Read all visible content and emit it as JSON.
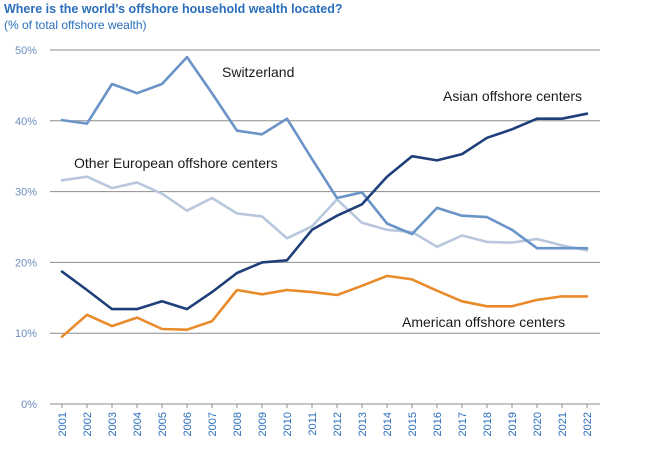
{
  "chart_data": {
    "type": "line",
    "title": "Where is the world’s offshore household wealth located?",
    "subtitle": "(% of total offshore wealth)",
    "x": [
      "2001",
      "2002",
      "2003",
      "2004",
      "2005",
      "2006",
      "2007",
      "2008",
      "2009",
      "2010",
      "2011",
      "2012",
      "2013",
      "2014",
      "2015",
      "2016",
      "2017",
      "2018",
      "2019",
      "2020",
      "2021",
      "2022"
    ],
    "yticks": [
      "0%",
      "10%",
      "20%",
      "30%",
      "40%",
      "50%"
    ],
    "ylim": [
      0,
      50
    ],
    "grid": true,
    "series": [
      {
        "name": "Switzerland",
        "color": "#6a93c8",
        "values": [
          40.1,
          39.6,
          45.2,
          43.9,
          45.2,
          49.0,
          43.9,
          38.6,
          38.1,
          40.3,
          34.6,
          29.1,
          29.9,
          25.5,
          24.0,
          27.7,
          26.6,
          26.4,
          24.6,
          22.0,
          22.0,
          22.0
        ]
      },
      {
        "name": "Asian offshore centers",
        "color": "#1f3f7a",
        "values": [
          18.7,
          16.1,
          13.4,
          13.4,
          14.5,
          13.4,
          15.8,
          18.5,
          20.0,
          20.3,
          24.6,
          26.6,
          28.2,
          32.1,
          35.0,
          34.4,
          35.3,
          37.6,
          38.8,
          40.3,
          40.3,
          41.0
        ]
      },
      {
        "name": "Other European offshore centers",
        "color": "#b8c7dd",
        "values": [
          31.6,
          32.1,
          30.5,
          31.3,
          29.7,
          27.3,
          29.1,
          26.9,
          26.5,
          23.4,
          25.1,
          28.9,
          25.6,
          24.6,
          24.3,
          22.2,
          23.8,
          22.9,
          22.8,
          23.3,
          22.4,
          21.7
        ]
      },
      {
        "name": "American offshore centers",
        "color": "#e98a2b",
        "values": [
          9.5,
          12.6,
          11.0,
          12.2,
          10.6,
          10.5,
          11.7,
          16.1,
          15.5,
          16.1,
          15.8,
          15.4,
          16.7,
          18.1,
          17.6,
          16.0,
          14.5,
          13.8,
          13.8,
          14.7,
          15.2,
          15.2
        ]
      }
    ]
  }
}
